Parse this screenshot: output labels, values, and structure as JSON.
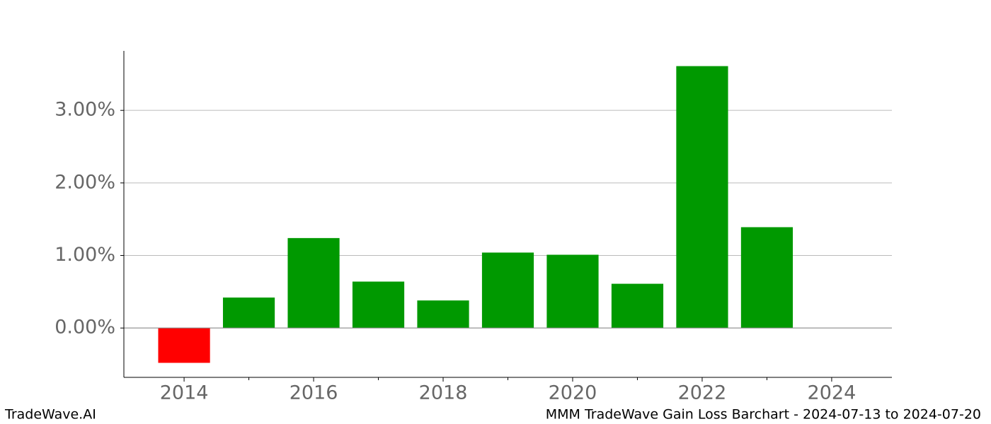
{
  "chart_data": {
    "type": "bar",
    "x": [
      2014,
      2015,
      2016,
      2017,
      2018,
      2019,
      2020,
      2021,
      2022,
      2023
    ],
    "values": [
      -0.48,
      0.42,
      1.24,
      0.64,
      0.38,
      1.04,
      1.01,
      0.61,
      3.61,
      1.39
    ],
    "colors": [
      "#ff0000",
      "#009900",
      "#009900",
      "#009900",
      "#009900",
      "#009900",
      "#009900",
      "#009900",
      "#009900",
      "#009900"
    ],
    "xlim": [
      2013.07,
      2024.93
    ],
    "ylim": [
      -0.68,
      3.82
    ],
    "xticks": [
      2014,
      2016,
      2018,
      2020,
      2022,
      2024
    ],
    "xminorticks": [
      2015,
      2017,
      2019,
      2021,
      2023
    ],
    "yticks": [
      {
        "value": 0,
        "label": "0.00%"
      },
      {
        "value": 1,
        "label": "1.00%"
      },
      {
        "value": 2,
        "label": "2.00%"
      },
      {
        "value": 3,
        "label": "3.00%"
      }
    ],
    "grid": true
  },
  "footer": {
    "left": "TradeWave.AI",
    "right": "MMM TradeWave Gain Loss Barchart - 2024-07-13 to 2024-07-20"
  }
}
